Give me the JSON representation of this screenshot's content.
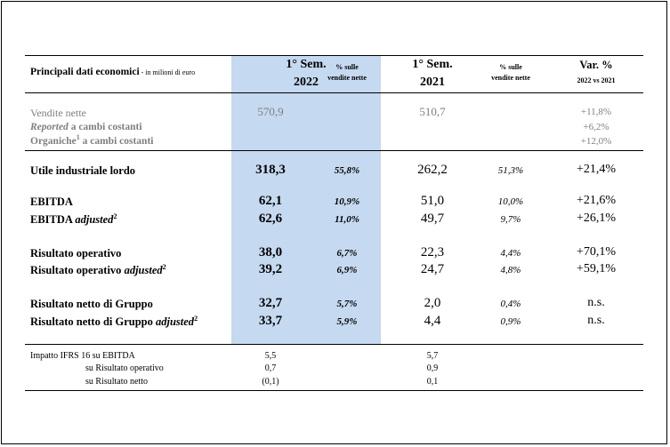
{
  "header": {
    "title": "Principali dati economici",
    "unit": " - in milioni di euro",
    "col1_line1": "1° Sem.",
    "col1_line2": "2022",
    "pct1_line1": "% sulle",
    "pct1_line2": "vendite nette",
    "col2_line1": "1° Sem.",
    "col2_line2": "2021",
    "pct2_line1": "% sulle",
    "pct2_line2": "vendite nette",
    "var_line1": "Var. %",
    "var_line2": "2022 vs 2021"
  },
  "sales": {
    "vendite_label": "Vendite nette",
    "vendite_2022": "570,9",
    "vendite_2021": "510,7",
    "vendite_var": "+11,8%",
    "reported_label_italic": "Reported",
    "reported_label_rest": " a cambi costanti",
    "reported_var": "+6,2%",
    "organiche_label": "Organiche",
    "organiche_sup": "1",
    "organiche_rest": " a cambi costanti",
    "organiche_var": "+12,0%"
  },
  "rows": [
    {
      "label": "Utile industriale lordo",
      "suffix": "",
      "sup": "",
      "v2022": "318,3",
      "p2022": "55,8%",
      "v2021": "262,2",
      "p2021": "51,3%",
      "var": "+21,4%"
    },
    {
      "label": "EBITDA",
      "suffix": "",
      "sup": "",
      "v2022": "62,1",
      "p2022": "10,9%",
      "v2021": "51,0",
      "p2021": "10,0%",
      "var": "+21,6%"
    },
    {
      "label": "EBITDA ",
      "suffix": "adjusted",
      "sup": "2",
      "v2022": "62,6",
      "p2022": "11,0%",
      "v2021": "49,7",
      "p2021": "9,7%",
      "var": "+26,1%"
    },
    {
      "label": "Risultato operativo",
      "suffix": "",
      "sup": "",
      "v2022": "38,0",
      "p2022": "6,7%",
      "v2021": "22,3",
      "p2021": "4,4%",
      "var": "+70,1%"
    },
    {
      "label": "Risultato operativo ",
      "suffix": "adjusted",
      "sup": "2",
      "v2022": "39,2",
      "p2022": "6,9%",
      "v2021": "24,7",
      "p2021": "4,8%",
      "var": "+59,1%"
    },
    {
      "label": "Risultato netto di Gruppo",
      "suffix": "",
      "sup": "",
      "v2022": "32,7",
      "p2022": "5,7%",
      "v2021": "2,0",
      "p2021": "0,4%",
      "var": "n.s."
    },
    {
      "label": "Risultato netto di Gruppo ",
      "suffix": "adjusted",
      "sup": "2",
      "v2022": "33,7",
      "p2022": "5,9%",
      "v2021": "4,4",
      "p2021": "0,9%",
      "var": "n.s."
    }
  ],
  "ifrs": {
    "label1": "Impatto IFRS 16 su EBITDA",
    "label2": "su Risultato operativo",
    "label3": "su Risultato netto",
    "v2022_1": "5,5",
    "v2022_2": "0,7",
    "v2022_3": "(0,1)",
    "v2021_1": "5,7",
    "v2021_2": "0,9",
    "v2021_3": "0,1"
  }
}
